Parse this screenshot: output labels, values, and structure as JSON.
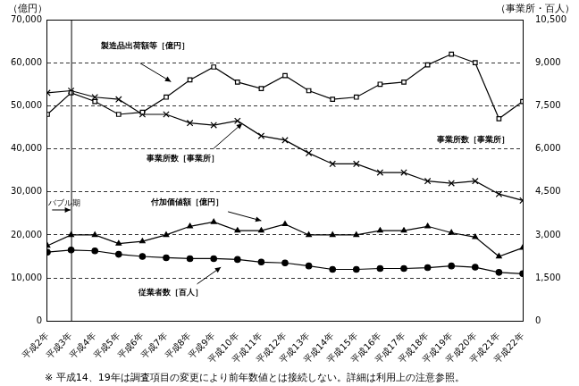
{
  "chart_data": {
    "type": "line",
    "y_label": "（億円）",
    "y2_label": "（事業所・百人）",
    "categories": [
      "平成2年",
      "平成3年",
      "平成4年",
      "平成5年",
      "平成6年",
      "平成7年",
      "平成8年",
      "平成9年",
      "平成10年",
      "平成11年",
      "平成12年",
      "平成13年",
      "平成14年",
      "平成15年",
      "平成16年",
      "平成17年",
      "平成18年",
      "平成19年",
      "平成20年",
      "平成21年",
      "平成22年"
    ],
    "series": [
      {
        "name": "製造品出荷額等［億円］",
        "color": "#000000",
        "marker": "square",
        "line_style": "solid",
        "values": [
          48000,
          53000,
          51000,
          48000,
          48500,
          52000,
          56000,
          59000,
          55500,
          54000,
          57000,
          53500,
          51500,
          52000,
          55000,
          55500,
          59500,
          62000,
          60000,
          47000,
          51000
        ]
      },
      {
        "name": "事業所数［事業所］",
        "color": "#000000",
        "marker": "x",
        "line_style": "solid",
        "axis": "y2",
        "values": [
          7950,
          8025,
          7800,
          7725,
          7200,
          7200,
          6900,
          6825,
          6975,
          6450,
          6300,
          5850,
          5475,
          5475,
          5175,
          5175,
          4875,
          4800,
          4875,
          4425,
          4200
        ]
      },
      {
        "name": "付加価値額［億円］",
        "color": "#000000",
        "marker": "triangle",
        "line_style": "solid",
        "values": [
          17500,
          20000,
          20000,
          18000,
          18500,
          20000,
          22000,
          23000,
          21000,
          21000,
          22500,
          20000,
          20000,
          20000,
          21000,
          21000,
          22000,
          20500,
          19500,
          15000,
          17000
        ]
      },
      {
        "name": "従業者数［百人］",
        "color": "#000000",
        "marker": "circle",
        "line_style": "solid",
        "axis": "y2",
        "values": [
          2400,
          2475,
          2445,
          2325,
          2250,
          2205,
          2175,
          2175,
          2145,
          2055,
          2025,
          1920,
          1800,
          1800,
          1830,
          1830,
          1860,
          1920,
          1875,
          1695,
          1650
        ]
      }
    ],
    "ylim": [
      0,
      70000
    ],
    "yticks": [
      0,
      {
        "value": 10000,
        "label": "10,000"
      },
      {
        "value": 20000,
        "label": "20,000"
      },
      {
        "value": 30000,
        "label": "30,000"
      },
      {
        "value": 40000,
        "label": "40,000"
      },
      {
        "value": 50000,
        "label": "50,000"
      },
      {
        "value": 60000,
        "label": "60,000"
      },
      {
        "value": 70000,
        "label": "70,000"
      }
    ],
    "y2lim": [
      0,
      10500
    ],
    "y2ticks": [
      0,
      {
        "value": 1500,
        "label": "1,500"
      },
      {
        "value": 3000,
        "label": "3,000"
      },
      {
        "value": 4500,
        "label": "4,500"
      },
      {
        "value": 6000,
        "label": "6,000"
      },
      {
        "value": 7500,
        "label": "7,500"
      },
      {
        "value": 9000,
        "label": "9,000"
      },
      {
        "value": 10500,
        "label": "10,500"
      }
    ],
    "grid": true,
    "annotations": [
      {
        "text": "バブル期",
        "x": "平成3年"
      },
      {
        "text": "事業所数［事業所］"
      }
    ],
    "note": "※ 平成14、19年は調査項目の変更により前年数値とは接続しない。詳細は利用上の注意参照。"
  }
}
